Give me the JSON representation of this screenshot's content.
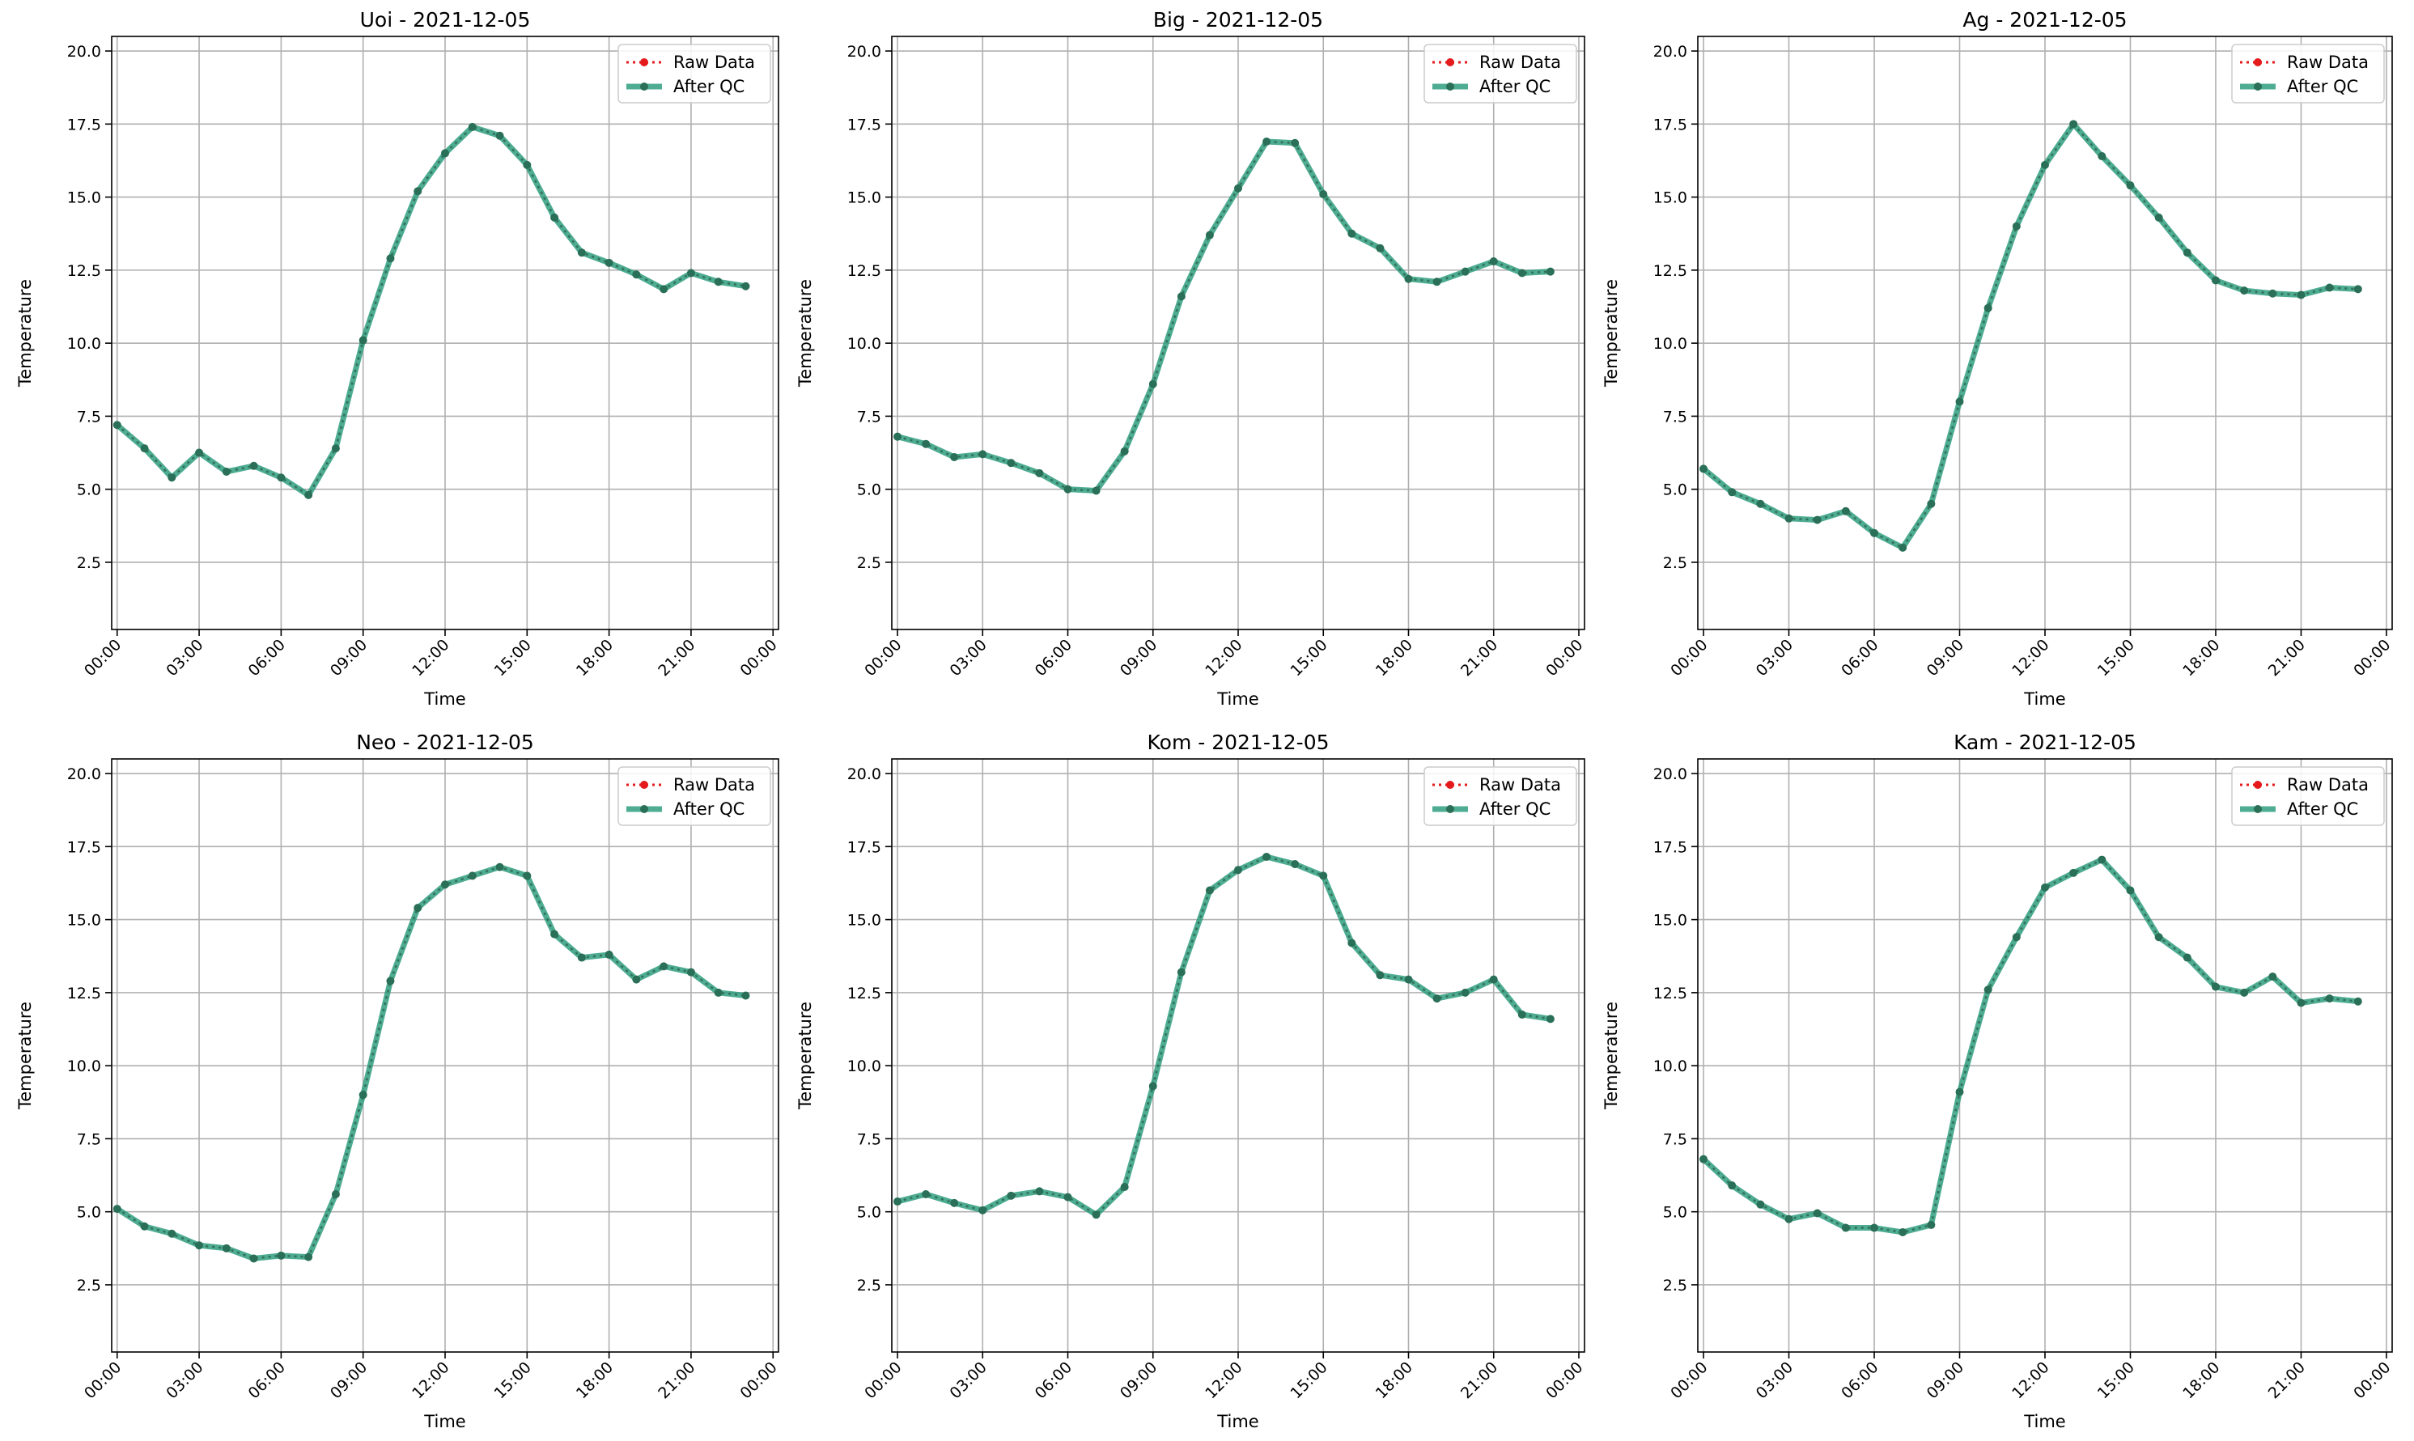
{
  "colors": {
    "raw": "#e41a1c",
    "qc": "#2e9e7e",
    "qc_marker": "#2a6f57",
    "grid": "#b0b0b0"
  },
  "chart_data": [
    {
      "type": "line",
      "title": "Uoi - 2021-12-05",
      "xlabel": "Time",
      "ylabel": "Temperature",
      "x_ticks": [
        "00:00",
        "03:00",
        "06:00",
        "09:00",
        "12:00",
        "15:00",
        "18:00",
        "21:00",
        "00:00"
      ],
      "y_ticks": [
        "2.5",
        "5.0",
        "7.5",
        "10.0",
        "12.5",
        "15.0",
        "17.5",
        "20.0"
      ],
      "xlim": [
        -0.2,
        24.2
      ],
      "ylim": [
        0.2,
        20.5
      ],
      "legend": [
        "Raw Data",
        "After QC"
      ],
      "legend_position": "top-right",
      "grid": true,
      "x_hours": [
        0,
        1,
        2,
        3,
        4,
        5,
        6,
        7,
        8,
        9,
        10,
        11,
        12,
        13,
        14,
        15,
        16,
        17,
        18,
        19,
        20,
        21,
        22,
        23
      ],
      "series": [
        {
          "name": "Raw Data",
          "values": [
            7.2,
            6.4,
            5.4,
            6.25,
            5.6,
            5.8,
            5.4,
            4.8,
            6.4,
            10.1,
            12.9,
            15.2,
            16.5,
            17.4,
            17.1,
            16.1,
            14.3,
            13.1,
            12.75,
            12.35,
            11.85,
            12.4,
            12.1,
            11.95
          ]
        },
        {
          "name": "After QC",
          "values": [
            7.2,
            6.4,
            5.4,
            6.25,
            5.6,
            5.8,
            5.4,
            4.8,
            6.4,
            10.1,
            12.9,
            15.2,
            16.5,
            17.4,
            17.1,
            16.1,
            14.3,
            13.1,
            12.75,
            12.35,
            11.85,
            12.4,
            12.1,
            11.95
          ]
        }
      ]
    },
    {
      "type": "line",
      "title": "Big - 2021-12-05",
      "xlabel": "Time",
      "ylabel": "Temperature",
      "x_ticks": [
        "00:00",
        "03:00",
        "06:00",
        "09:00",
        "12:00",
        "15:00",
        "18:00",
        "21:00",
        "00:00"
      ],
      "y_ticks": [
        "2.5",
        "5.0",
        "7.5",
        "10.0",
        "12.5",
        "15.0",
        "17.5",
        "20.0"
      ],
      "xlim": [
        -0.2,
        24.2
      ],
      "ylim": [
        0.2,
        20.5
      ],
      "legend": [
        "Raw Data",
        "After QC"
      ],
      "legend_position": "top-right",
      "grid": true,
      "x_hours": [
        0,
        1,
        2,
        3,
        4,
        5,
        6,
        7,
        8,
        9,
        10,
        11,
        12,
        13,
        14,
        15,
        16,
        17,
        18,
        19,
        20,
        21,
        22,
        23
      ],
      "series": [
        {
          "name": "Raw Data",
          "values": [
            6.8,
            6.55,
            6.1,
            6.2,
            5.9,
            5.55,
            5.0,
            4.95,
            6.3,
            8.6,
            11.6,
            13.7,
            15.3,
            16.9,
            16.85,
            15.1,
            13.75,
            13.25,
            12.2,
            12.1,
            12.45,
            12.8,
            12.4,
            12.45
          ]
        },
        {
          "name": "After QC",
          "values": [
            6.8,
            6.55,
            6.1,
            6.2,
            5.9,
            5.55,
            5.0,
            4.95,
            6.3,
            8.6,
            11.6,
            13.7,
            15.3,
            16.9,
            16.85,
            15.1,
            13.75,
            13.25,
            12.2,
            12.1,
            12.45,
            12.8,
            12.4,
            12.45
          ]
        }
      ]
    },
    {
      "type": "line",
      "title": "Ag - 2021-12-05",
      "xlabel": "Time",
      "ylabel": "Temperature",
      "x_ticks": [
        "00:00",
        "03:00",
        "06:00",
        "09:00",
        "12:00",
        "15:00",
        "18:00",
        "21:00",
        "00:00"
      ],
      "y_ticks": [
        "2.5",
        "5.0",
        "7.5",
        "10.0",
        "12.5",
        "15.0",
        "17.5",
        "20.0"
      ],
      "xlim": [
        -0.2,
        24.2
      ],
      "ylim": [
        0.2,
        20.5
      ],
      "legend": [
        "Raw Data",
        "After QC"
      ],
      "legend_position": "top-right",
      "grid": true,
      "x_hours": [
        0,
        1,
        2,
        3,
        4,
        5,
        6,
        7,
        8,
        9,
        10,
        11,
        12,
        13,
        14,
        15,
        16,
        17,
        18,
        19,
        20,
        21,
        22,
        23
      ],
      "series": [
        {
          "name": "Raw Data",
          "values": [
            5.7,
            4.9,
            4.5,
            4.0,
            3.95,
            4.25,
            3.5,
            3.0,
            4.5,
            8.0,
            11.2,
            14.0,
            16.1,
            17.5,
            16.4,
            15.4,
            14.3,
            13.1,
            12.15,
            11.8,
            11.7,
            11.65,
            11.9,
            11.85
          ]
        },
        {
          "name": "After QC",
          "values": [
            5.7,
            4.9,
            4.5,
            4.0,
            3.95,
            4.25,
            3.5,
            3.0,
            4.5,
            8.0,
            11.2,
            14.0,
            16.1,
            17.5,
            16.4,
            15.4,
            14.3,
            13.1,
            12.15,
            11.8,
            11.7,
            11.65,
            11.9,
            11.85
          ]
        }
      ]
    },
    {
      "type": "line",
      "title": "Neo - 2021-12-05",
      "xlabel": "Time",
      "ylabel": "Temperature",
      "x_ticks": [
        "00:00",
        "03:00",
        "06:00",
        "09:00",
        "12:00",
        "15:00",
        "18:00",
        "21:00",
        "00:00"
      ],
      "y_ticks": [
        "2.5",
        "5.0",
        "7.5",
        "10.0",
        "12.5",
        "15.0",
        "17.5",
        "20.0"
      ],
      "xlim": [
        -0.2,
        24.2
      ],
      "ylim": [
        0.2,
        20.5
      ],
      "legend": [
        "Raw Data",
        "After QC"
      ],
      "legend_position": "top-right",
      "grid": true,
      "x_hours": [
        0,
        1,
        2,
        3,
        4,
        5,
        6,
        7,
        8,
        9,
        10,
        11,
        12,
        13,
        14,
        15,
        16,
        17,
        18,
        19,
        20,
        21,
        22,
        23
      ],
      "series": [
        {
          "name": "Raw Data",
          "values": [
            5.1,
            4.5,
            4.25,
            3.85,
            3.75,
            3.4,
            3.5,
            3.45,
            5.6,
            9.0,
            12.9,
            15.4,
            16.2,
            16.5,
            16.8,
            16.5,
            14.5,
            13.7,
            13.8,
            12.95,
            13.4,
            13.2,
            12.5,
            12.4
          ]
        },
        {
          "name": "After QC",
          "values": [
            5.1,
            4.5,
            4.25,
            3.85,
            3.75,
            3.4,
            3.5,
            3.45,
            5.6,
            9.0,
            12.9,
            15.4,
            16.2,
            16.5,
            16.8,
            16.5,
            14.5,
            13.7,
            13.8,
            12.95,
            13.4,
            13.2,
            12.5,
            12.4
          ]
        }
      ]
    },
    {
      "type": "line",
      "title": "Kom - 2021-12-05",
      "xlabel": "Time",
      "ylabel": "Temperature",
      "x_ticks": [
        "00:00",
        "03:00",
        "06:00",
        "09:00",
        "12:00",
        "15:00",
        "18:00",
        "21:00",
        "00:00"
      ],
      "y_ticks": [
        "2.5",
        "5.0",
        "7.5",
        "10.0",
        "12.5",
        "15.0",
        "17.5",
        "20.0"
      ],
      "xlim": [
        -0.2,
        24.2
      ],
      "ylim": [
        0.2,
        20.5
      ],
      "legend": [
        "Raw Data",
        "After QC"
      ],
      "legend_position": "top-right",
      "grid": true,
      "x_hours": [
        0,
        1,
        2,
        3,
        4,
        5,
        6,
        7,
        8,
        9,
        10,
        11,
        12,
        13,
        14,
        15,
        16,
        17,
        18,
        19,
        20,
        21,
        22,
        23
      ],
      "series": [
        {
          "name": "Raw Data",
          "values": [
            5.35,
            5.6,
            5.3,
            5.05,
            5.55,
            5.7,
            5.5,
            4.9,
            5.85,
            9.3,
            13.2,
            16.0,
            16.7,
            17.15,
            16.9,
            16.5,
            14.2,
            13.1,
            12.95,
            12.3,
            12.5,
            12.95,
            11.75,
            11.6
          ]
        },
        {
          "name": "After QC",
          "values": [
            5.35,
            5.6,
            5.3,
            5.05,
            5.55,
            5.7,
            5.5,
            4.9,
            5.85,
            9.3,
            13.2,
            16.0,
            16.7,
            17.15,
            16.9,
            16.5,
            14.2,
            13.1,
            12.95,
            12.3,
            12.5,
            12.95,
            11.75,
            11.6
          ]
        }
      ]
    },
    {
      "type": "line",
      "title": "Kam - 2021-12-05",
      "xlabel": "Time",
      "ylabel": "Temperature",
      "x_ticks": [
        "00:00",
        "03:00",
        "06:00",
        "09:00",
        "12:00",
        "15:00",
        "18:00",
        "21:00",
        "00:00"
      ],
      "y_ticks": [
        "2.5",
        "5.0",
        "7.5",
        "10.0",
        "12.5",
        "15.0",
        "17.5",
        "20.0"
      ],
      "xlim": [
        -0.2,
        24.2
      ],
      "ylim": [
        0.2,
        20.5
      ],
      "legend": [
        "Raw Data",
        "After QC"
      ],
      "legend_position": "top-right",
      "grid": true,
      "x_hours": [
        0,
        1,
        2,
        3,
        4,
        5,
        6,
        7,
        8,
        9,
        10,
        11,
        12,
        13,
        14,
        15,
        16,
        17,
        18,
        19,
        20,
        21,
        22,
        23
      ],
      "series": [
        {
          "name": "Raw Data",
          "values": [
            6.8,
            5.9,
            5.25,
            4.75,
            4.95,
            4.45,
            4.45,
            4.3,
            4.55,
            9.1,
            12.6,
            14.4,
            16.1,
            16.6,
            17.05,
            16.0,
            14.4,
            13.7,
            12.7,
            12.5,
            13.05,
            12.15,
            12.3,
            12.2
          ]
        },
        {
          "name": "After QC",
          "values": [
            6.8,
            5.9,
            5.25,
            4.75,
            4.95,
            4.45,
            4.45,
            4.3,
            4.55,
            9.1,
            12.6,
            14.4,
            16.1,
            16.6,
            17.05,
            16.0,
            14.4,
            13.7,
            12.7,
            12.5,
            13.05,
            12.15,
            12.3,
            12.2
          ]
        }
      ]
    }
  ]
}
